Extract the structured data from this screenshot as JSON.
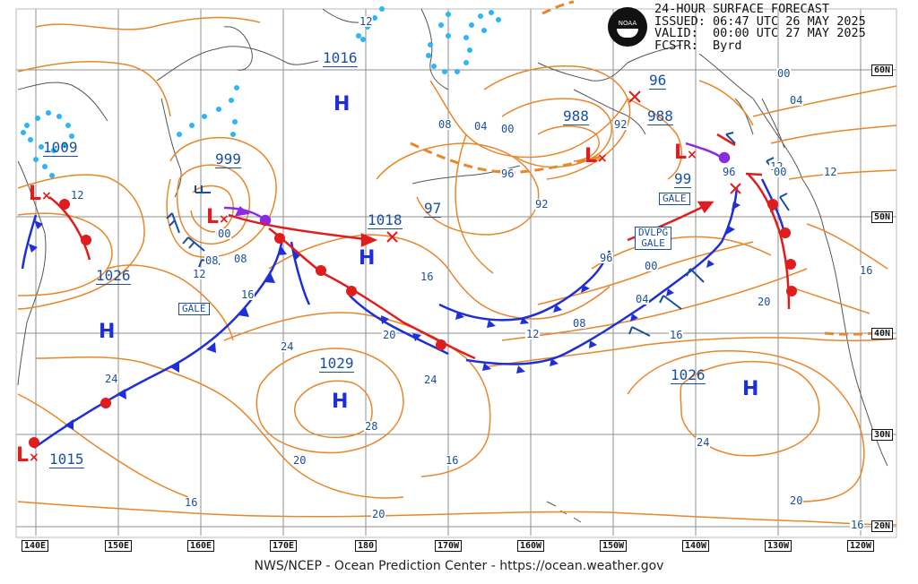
{
  "header": {
    "line1": "24-HOUR SURFACE FORECAST",
    "line2": "ISSUED: 06:47 UTC 26 MAY 2025",
    "line3": "VALID:  00:00 UTC 27 MAY 2025",
    "line4": "FCSTR:  Byrd"
  },
  "logo": {
    "text": "NOAA"
  },
  "footer": "NWS/NCEP - Ocean Prediction Center - https://ocean.weather.gov",
  "longitudes": [
    "140E",
    "150E",
    "160E",
    "170E",
    "180",
    "170W",
    "160W",
    "150W",
    "140W",
    "130W",
    "120W"
  ],
  "latitudes": [
    "60N",
    "50N",
    "40N",
    "30N",
    "20N"
  ],
  "highs": [
    {
      "sym": "H",
      "label": "1016"
    },
    {
      "sym": "H",
      "label": "1026"
    },
    {
      "sym": "H",
      "label": "1029"
    },
    {
      "sym": "H",
      "label": "1026"
    },
    {
      "sym": "H",
      "label": "1018"
    }
  ],
  "lows": [
    {
      "sym": "L",
      "label": "1009"
    },
    {
      "sym": "L",
      "label": "999"
    },
    {
      "sym": "L",
      "label": "988"
    },
    {
      "sym": "L",
      "label": "988"
    },
    {
      "sym": "L",
      "label": "1015"
    }
  ],
  "extra_labels": [
    "96",
    "97",
    "99",
    "96"
  ],
  "warnings": [
    "GALE",
    "GALE",
    "DVLPG",
    "GALE"
  ],
  "isobar_labels": [
    "12",
    "08",
    "04",
    "00",
    "96",
    "92",
    "08",
    "04",
    "00",
    "12",
    "16",
    "20",
    "24",
    "28",
    "24",
    "20",
    "16",
    "12",
    "08",
    "04",
    "00",
    "96",
    "92",
    "12",
    "16",
    "20",
    "24",
    "16",
    "20",
    "24",
    "00",
    "04",
    "12",
    "16",
    "08",
    "12",
    "16",
    "20",
    "16",
    "12",
    "00"
  ],
  "colors": {
    "isobar": "#e8862a",
    "cold_front": "#1f2fd8",
    "warm_front": "#e01d1d",
    "occluded": "#8a2be2",
    "ice": "#29b6f6",
    "grid": "#999999",
    "label": "#1a4f9a"
  }
}
